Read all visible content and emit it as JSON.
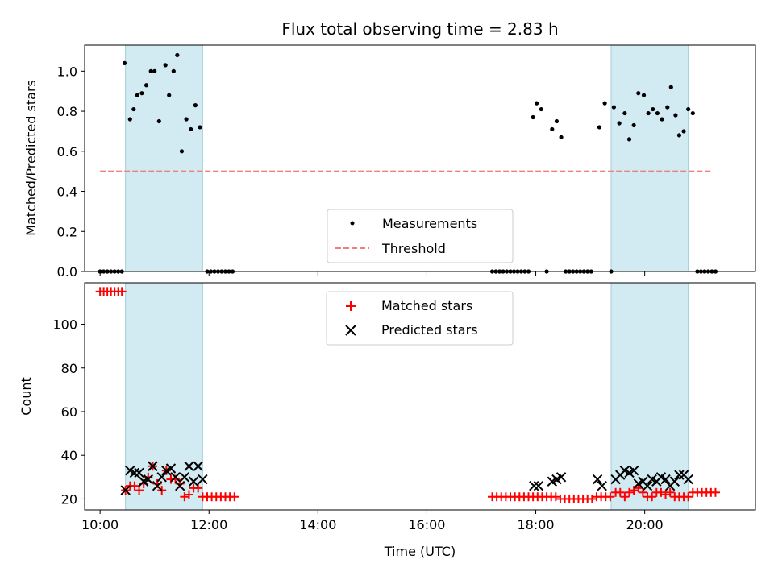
{
  "chart_data": {
    "title": "Flux total observing time = 2.83 h",
    "xlabel": "Time (UTC)",
    "xticks": [
      "10:00",
      "12:00",
      "14:00",
      "16:00",
      "18:00",
      "20:00"
    ],
    "xlim": [
      "09:43",
      "22:02"
    ],
    "shaded_intervals": [
      [
        "10:28",
        "11:53"
      ],
      [
        "19:23",
        "20:48"
      ]
    ],
    "colors": {
      "shade": "#add8e6",
      "threshold": "#f08080",
      "matched": "#ff0000",
      "predicted": "#000000"
    },
    "panels": [
      {
        "type": "scatter",
        "ylabel": "Matched/Predicted stars",
        "ylim": [
          0,
          1.13
        ],
        "yticks": [
          "0.0",
          "0.2",
          "0.4",
          "0.6",
          "0.8",
          "1.0"
        ],
        "legend_position": "lower-center",
        "series": [
          {
            "name": "Measurements",
            "marker": "dot",
            "points": [
              [
                "10:00",
                0
              ],
              [
                "10:04",
                0
              ],
              [
                "10:08",
                0
              ],
              [
                "10:12",
                0
              ],
              [
                "10:16",
                0
              ],
              [
                "10:20",
                0
              ],
              [
                "10:24",
                0
              ],
              [
                "10:27",
                1.04
              ],
              [
                "10:33",
                0.76
              ],
              [
                "10:37",
                0.81
              ],
              [
                "10:41",
                0.88
              ],
              [
                "10:46",
                0.89
              ],
              [
                "10:51",
                0.93
              ],
              [
                "10:56",
                1.0
              ],
              [
                "11:00",
                1.0
              ],
              [
                "11:05",
                0.75
              ],
              [
                "11:12",
                1.03
              ],
              [
                "11:16",
                0.88
              ],
              [
                "11:21",
                1.0
              ],
              [
                "11:25",
                1.08
              ],
              [
                "11:30",
                0.6
              ],
              [
                "11:35",
                0.76
              ],
              [
                "11:40",
                0.71
              ],
              [
                "11:45",
                0.83
              ],
              [
                "11:50",
                0.72
              ],
              [
                "11:58",
                0
              ],
              [
                "12:02",
                0
              ],
              [
                "12:06",
                0
              ],
              [
                "12:10",
                0
              ],
              [
                "12:14",
                0
              ],
              [
                "12:18",
                0
              ],
              [
                "12:22",
                0
              ],
              [
                "12:26",
                0
              ],
              [
                "17:12",
                0
              ],
              [
                "17:16",
                0
              ],
              [
                "17:20",
                0
              ],
              [
                "17:24",
                0
              ],
              [
                "17:28",
                0
              ],
              [
                "17:32",
                0
              ],
              [
                "17:36",
                0
              ],
              [
                "17:40",
                0
              ],
              [
                "17:44",
                0
              ],
              [
                "17:48",
                0
              ],
              [
                "17:52",
                0
              ],
              [
                "17:57",
                0.77
              ],
              [
                "18:01",
                0.84
              ],
              [
                "18:06",
                0.81
              ],
              [
                "18:12",
                0
              ],
              [
                "18:18",
                0.71
              ],
              [
                "18:23",
                0.75
              ],
              [
                "18:28",
                0.67
              ],
              [
                "18:33",
                0
              ],
              [
                "18:37",
                0
              ],
              [
                "18:41",
                0
              ],
              [
                "18:45",
                0
              ],
              [
                "18:49",
                0
              ],
              [
                "18:53",
                0
              ],
              [
                "18:57",
                0
              ],
              [
                "19:01",
                0
              ],
              [
                "19:10",
                0.72
              ],
              [
                "19:16",
                0.84
              ],
              [
                "19:23",
                0
              ],
              [
                "19:26",
                0.82
              ],
              [
                "19:32",
                0.74
              ],
              [
                "19:38",
                0.79
              ],
              [
                "19:43",
                0.66
              ],
              [
                "19:48",
                0.73
              ],
              [
                "19:53",
                0.89
              ],
              [
                "19:59",
                0.88
              ],
              [
                "20:04",
                0.79
              ],
              [
                "20:09",
                0.81
              ],
              [
                "20:14",
                0.79
              ],
              [
                "20:19",
                0.76
              ],
              [
                "20:25",
                0.82
              ],
              [
                "20:29",
                0.92
              ],
              [
                "20:34",
                0.78
              ],
              [
                "20:38",
                0.68
              ],
              [
                "20:43",
                0.7
              ],
              [
                "20:48",
                0.81
              ],
              [
                "20:53",
                0.79
              ],
              [
                "20:58",
                0
              ],
              [
                "21:02",
                0
              ],
              [
                "21:06",
                0
              ],
              [
                "21:10",
                0
              ],
              [
                "21:14",
                0
              ],
              [
                "21:18",
                0
              ]
            ]
          },
          {
            "name": "Threshold",
            "style": "dashed",
            "points": [
              [
                "10:00",
                0.5
              ],
              [
                "21:15",
                0.5
              ]
            ]
          }
        ]
      },
      {
        "type": "scatter",
        "ylabel": "Count",
        "ylim": [
          15,
          119
        ],
        "yticks": [
          "20",
          "40",
          "60",
          "80",
          "100"
        ],
        "legend_position": "upper-center",
        "series": [
          {
            "name": "Matched stars",
            "marker": "plus",
            "points": [
              [
                "10:00",
                115
              ],
              [
                "10:04",
                115
              ],
              [
                "10:08",
                115
              ],
              [
                "10:12",
                115
              ],
              [
                "10:16",
                115
              ],
              [
                "10:20",
                115
              ],
              [
                "10:24",
                115
              ],
              [
                "10:28",
                24
              ],
              [
                "10:33",
                26
              ],
              [
                "10:38",
                26
              ],
              [
                "10:43",
                24
              ],
              [
                "10:48",
                27
              ],
              [
                "10:53",
                30
              ],
              [
                "10:58",
                35
              ],
              [
                "11:03",
                27
              ],
              [
                "11:08",
                24
              ],
              [
                "11:13",
                33
              ],
              [
                "11:18",
                29
              ],
              [
                "11:23",
                29
              ],
              [
                "11:28",
                27
              ],
              [
                "11:33",
                21
              ],
              [
                "11:38",
                22
              ],
              [
                "11:43",
                25
              ],
              [
                "11:48",
                25
              ],
              [
                "11:53",
                21
              ],
              [
                "11:58",
                21
              ],
              [
                "12:03",
                21
              ],
              [
                "12:08",
                21
              ],
              [
                "12:13",
                21
              ],
              [
                "12:18",
                21
              ],
              [
                "12:23",
                21
              ],
              [
                "12:28",
                21
              ],
              [
                "17:12",
                21
              ],
              [
                "17:17",
                21
              ],
              [
                "17:22",
                21
              ],
              [
                "17:27",
                21
              ],
              [
                "17:32",
                21
              ],
              [
                "17:37",
                21
              ],
              [
                "17:42",
                21
              ],
              [
                "17:47",
                21
              ],
              [
                "17:52",
                21
              ],
              [
                "17:57",
                21
              ],
              [
                "18:02",
                21
              ],
              [
                "18:07",
                21
              ],
              [
                "18:12",
                21
              ],
              [
                "18:17",
                21
              ],
              [
                "18:22",
                21
              ],
              [
                "18:27",
                20
              ],
              [
                "18:32",
                20
              ],
              [
                "18:37",
                20
              ],
              [
                "18:42",
                20
              ],
              [
                "18:47",
                20
              ],
              [
                "18:52",
                20
              ],
              [
                "18:57",
                20
              ],
              [
                "19:02",
                20
              ],
              [
                "19:07",
                21
              ],
              [
                "19:12",
                21
              ],
              [
                "19:17",
                21
              ],
              [
                "19:22",
                21
              ],
              [
                "19:28",
                23
              ],
              [
                "19:33",
                23
              ],
              [
                "19:38",
                21
              ],
              [
                "19:43",
                23
              ],
              [
                "19:48",
                24
              ],
              [
                "19:53",
                25
              ],
              [
                "19:58",
                23
              ],
              [
                "20:03",
                21
              ],
              [
                "20:08",
                21
              ],
              [
                "20:13",
                23
              ],
              [
                "20:18",
                23
              ],
              [
                "20:23",
                22
              ],
              [
                "20:28",
                23
              ],
              [
                "20:33",
                21
              ],
              [
                "20:38",
                21
              ],
              [
                "20:43",
                21
              ],
              [
                "20:48",
                21
              ],
              [
                "20:53",
                23
              ],
              [
                "20:58",
                23
              ],
              [
                "21:03",
                23
              ],
              [
                "21:08",
                23
              ],
              [
                "21:13",
                23
              ],
              [
                "21:18",
                23
              ]
            ]
          },
          {
            "name": "Predicted stars",
            "marker": "x",
            "points": [
              [
                "10:28",
                24
              ],
              [
                "10:33",
                33
              ],
              [
                "10:38",
                32
              ],
              [
                "10:43",
                32
              ],
              [
                "10:48",
                28
              ],
              [
                "10:53",
                29
              ],
              [
                "10:58",
                35
              ],
              [
                "11:03",
                26
              ],
              [
                "11:08",
                30
              ],
              [
                "11:13",
                33
              ],
              [
                "11:18",
                34
              ],
              [
                "11:23",
                30
              ],
              [
                "11:28",
                26
              ],
              [
                "11:33",
                30
              ],
              [
                "11:38",
                35
              ],
              [
                "11:43",
                28
              ],
              [
                "11:48",
                35
              ],
              [
                "11:53",
                29
              ],
              [
                "17:58",
                26
              ],
              [
                "18:03",
                26
              ],
              [
                "18:18",
                28
              ],
              [
                "18:23",
                29
              ],
              [
                "18:28",
                30
              ],
              [
                "19:08",
                29
              ],
              [
                "19:13",
                26
              ],
              [
                "19:28",
                29
              ],
              [
                "19:33",
                31
              ],
              [
                "19:38",
                33
              ],
              [
                "19:43",
                32
              ],
              [
                "19:48",
                33
              ],
              [
                "19:53",
                27
              ],
              [
                "19:58",
                28
              ],
              [
                "20:03",
                26
              ],
              [
                "20:08",
                29
              ],
              [
                "20:13",
                28
              ],
              [
                "20:18",
                30
              ],
              [
                "20:23",
                29
              ],
              [
                "20:28",
                26
              ],
              [
                "20:33",
                28
              ],
              [
                "20:38",
                31
              ],
              [
                "20:43",
                31
              ],
              [
                "20:48",
                29
              ]
            ]
          }
        ]
      }
    ]
  }
}
